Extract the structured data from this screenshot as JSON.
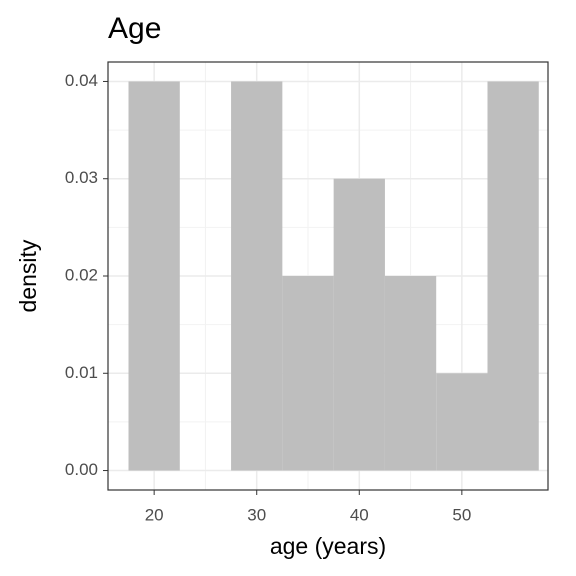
{
  "chart_data": {
    "type": "histogram",
    "title": "Age",
    "x_label": "age (years)",
    "y_label": "density",
    "bins": [
      17.5,
      22.5,
      27.5,
      32.5,
      37.5,
      42.5,
      47.5,
      52.5,
      57.5
    ],
    "values": [
      0.04,
      0,
      0.04,
      0.02,
      0.03,
      0.02,
      0.01,
      0.04
    ],
    "color": "#bebebe",
    "xlim": [
      15.5,
      58.4
    ],
    "xticks": [
      20,
      30,
      40,
      50
    ],
    "ylim": [
      -0.002,
      0.042
    ],
    "yticks": [
      {
        "value": 0,
        "label": "0.00"
      },
      0.01,
      0.02,
      0.03,
      0.04
    ],
    "grid": true
  }
}
